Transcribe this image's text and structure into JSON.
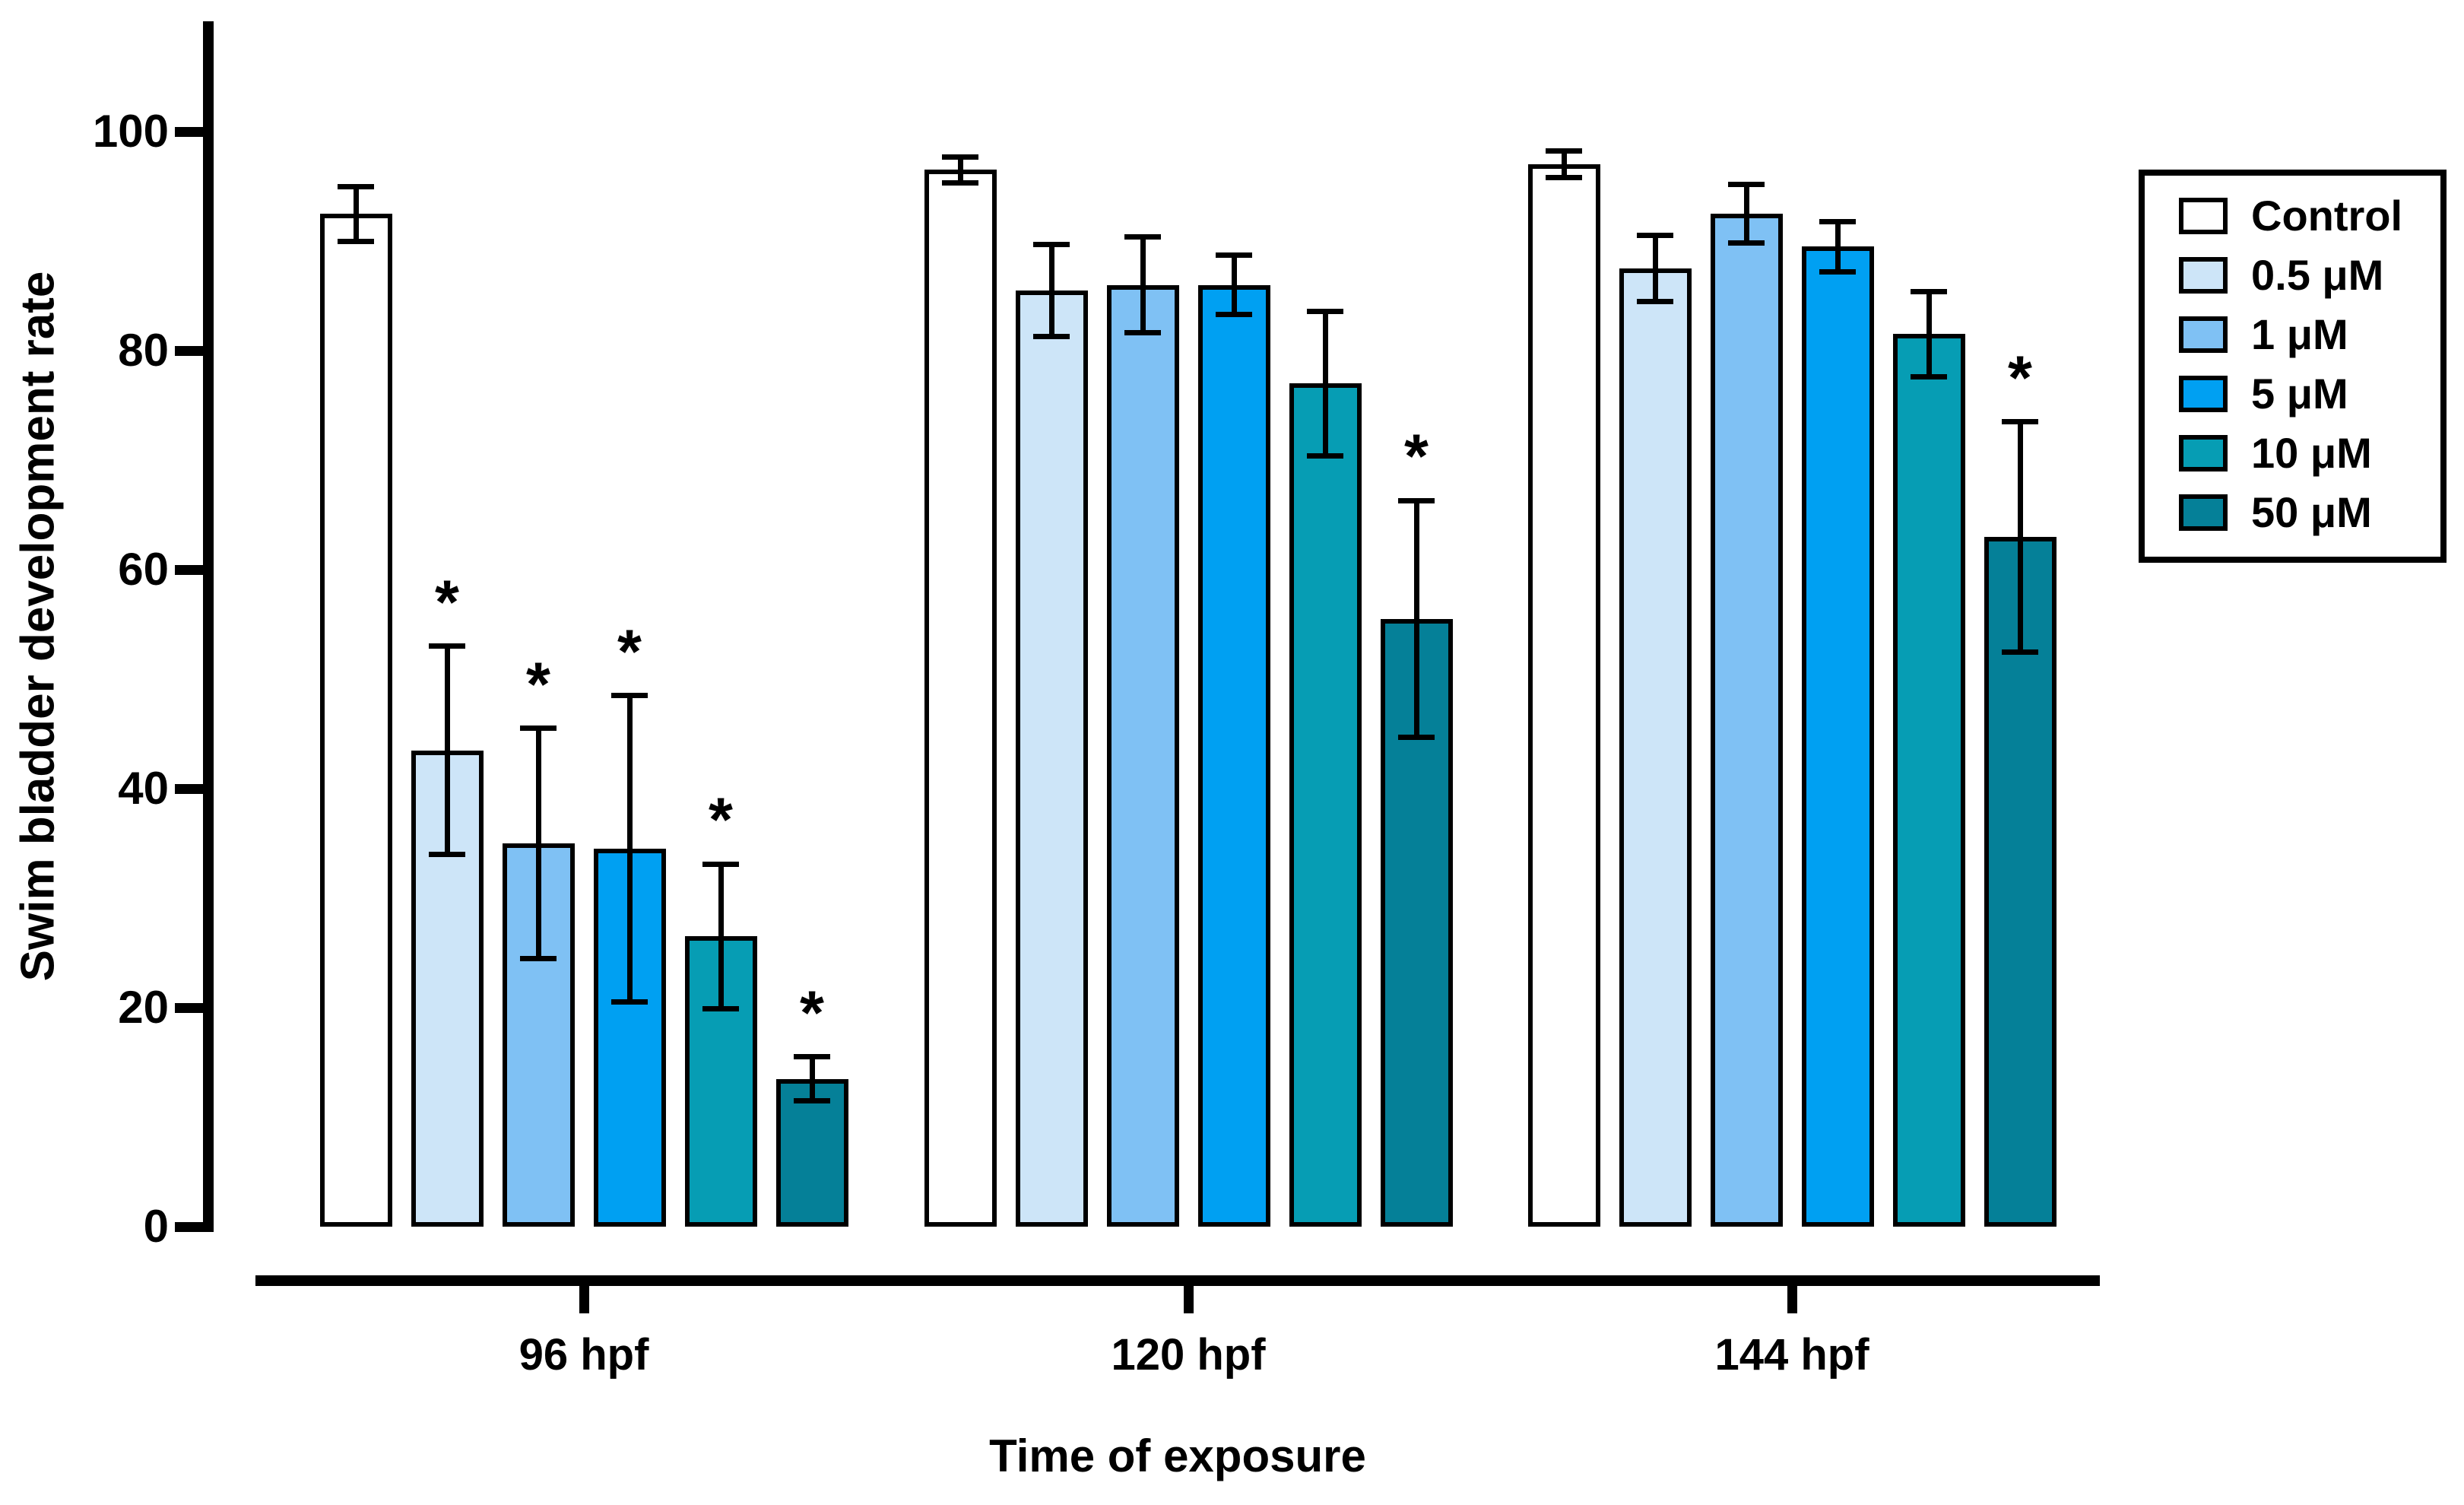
{
  "figure": {
    "background": "#ffffff",
    "axis_color": "#000000",
    "significance_marker": "*"
  },
  "chart_data": {
    "type": "bar",
    "title": "",
    "xlabel": "Time of exposure",
    "ylabel": "Swim bladder development rate",
    "ylim": [
      0,
      110
    ],
    "yticks": [
      0,
      20,
      40,
      60,
      80,
      100
    ],
    "grid": false,
    "legend_position": "top-right",
    "categories": [
      "96 hpf",
      "120 hpf",
      "144 hpf"
    ],
    "series": [
      {
        "name": "Control",
        "color": "#FFFFFF",
        "values": [
          92.5,
          96.5,
          97.0
        ],
        "errors": [
          2.5,
          1.2,
          1.2
        ],
        "significant": [
          false,
          false,
          false
        ]
      },
      {
        "name": "0.5 μM",
        "color": "#CDE5F8",
        "values": [
          43.5,
          85.5,
          87.5
        ],
        "errors": [
          9.5,
          4.2,
          3.0
        ],
        "significant": [
          true,
          false,
          false
        ]
      },
      {
        "name": "1 μM",
        "color": "#7FC1F4",
        "values": [
          35.0,
          86.0,
          92.5
        ],
        "errors": [
          10.5,
          4.4,
          2.7
        ],
        "significant": [
          true,
          false,
          false
        ]
      },
      {
        "name": "5 μM",
        "color": "#00A0F2",
        "values": [
          34.5,
          86.0,
          89.5
        ],
        "errors": [
          14.0,
          2.7,
          2.3
        ],
        "significant": [
          true,
          false,
          false
        ]
      },
      {
        "name": "10 μM",
        "color": "#069DB4",
        "values": [
          26.5,
          77.0,
          81.5
        ],
        "errors": [
          6.6,
          6.6,
          3.9
        ],
        "significant": [
          true,
          false,
          false
        ]
      },
      {
        "name": "50 μM",
        "color": "#058098",
        "values": [
          13.5,
          55.5,
          63.0
        ],
        "errors": [
          2.0,
          10.8,
          10.5
        ],
        "significant": [
          true,
          true,
          true
        ]
      }
    ]
  }
}
